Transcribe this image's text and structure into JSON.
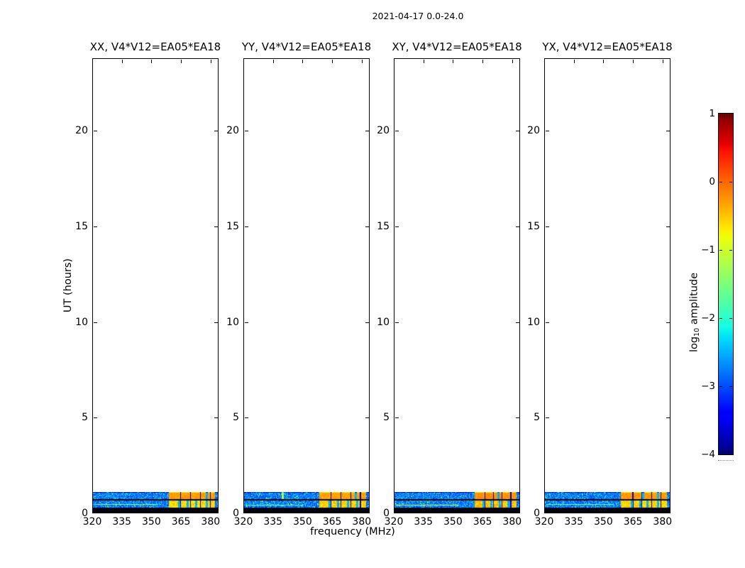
{
  "figure": {
    "title": "2021-04-17 0.0-24.0",
    "xlabel": "frequency (MHz)",
    "ylabel": "UT (hours)",
    "colorbar_label": {
      "pre": "log",
      "sub": "10",
      "post": " amplitude"
    },
    "background": "#ffffff",
    "axis_color": "#000000"
  },
  "chart_data": {
    "type": "heatmap",
    "title": "2021-04-17 0.0-24.0",
    "xlabel": "frequency (MHz)",
    "ylabel": "UT (hours)",
    "x_range_mhz": [
      320,
      384
    ],
    "x_ticks": [
      320,
      335,
      350,
      365,
      380
    ],
    "x_tick_labels": [
      "320",
      "335",
      "350",
      "365",
      "380"
    ],
    "y_range_hours": [
      0,
      23.8
    ],
    "y_ticks": [
      0,
      5,
      10,
      15,
      20
    ],
    "y_tick_labels": [
      "0",
      "5",
      "10",
      "15",
      "20"
    ],
    "grid": false,
    "legend": "none",
    "colorbar": {
      "label": "log10 amplitude",
      "min": -4,
      "max": 1,
      "ticks": [
        1,
        0,
        -1,
        -2,
        -3,
        -4
      ],
      "tick_labels": [
        "1",
        "0",
        "−1",
        "−2",
        "−3",
        "−4"
      ],
      "colormap": "jet",
      "position": "right"
    },
    "time_coverage": "Visibility data present only at UT 0 to ~1.1 hours; the remaining 0-24 h span of every panel is empty (white). A near-black band (log10 amp ~ -4) sits at UT 0-0.3 h.",
    "panels": [
      {
        "title": "XX, V4*V12=EA05*EA18",
        "polarization": "XX",
        "baseline": "V4*V12=EA05*EA18",
        "content": "Two noisy spectrum rows at UT 0.3-1.1 h: background log10 amplitude ~ -3.2 (blue) with cyan speckles for 320-358 MHz; strong RFI ~ -0.3 (orange/red blocks with dark 5 MHz separators) for 359-382 MHz; faint orange time-line in lower row at 320-353 MHz.",
        "render": {
          "seed": 11,
          "rfiStart": 358.6,
          "rfiA": -0.28,
          "rfiB": -0.62,
          "seps": [
            364.6,
            369.6,
            374.6,
            379.6
          ],
          "gapsA": [
            377.9
          ],
          "gapsB": [
            363.9,
            368.3,
            372.5,
            377.9
          ],
          "hasLine": true,
          "lineVal": -1.35,
          "lineEnd": 353,
          "lineRow": 17,
          "vline": null,
          "vlineVal": null
        }
      },
      {
        "title": "YY, V4*V12=EA05*EA18",
        "polarization": "YY",
        "baseline": "V4*V12=EA05*EA18",
        "content": "Same structure as XX; RFI block ~358-382 MHz, thin bright vertical line near 340 MHz, weak line in lower row.",
        "render": {
          "seed": 22,
          "rfiStart": 358.2,
          "rfiA": -0.3,
          "rfiB": -0.55,
          "seps": [
            364.2,
            369.2,
            374.2,
            379.2
          ],
          "gapsA": [
            376.8
          ],
          "gapsB": [
            363.5,
            368.0,
            372.8,
            377.5
          ],
          "hasLine": true,
          "lineVal": -1.6,
          "lineEnd": 350,
          "lineRow": 18,
          "vline": 339.8,
          "vlineVal": -1.2
        }
      },
      {
        "title": "XY, V4*V12=EA05*EA18",
        "polarization": "XY",
        "baseline": "V4*V12=EA05*EA18",
        "content": "RFI block starts slightly higher (~361 MHz); clear orange-red horizontal line across 321-352 MHz in the lower row.",
        "render": {
          "seed": 33,
          "rfiStart": 360.9,
          "rfiA": -0.22,
          "rfiB": -0.5,
          "seps": [
            366.0,
            370.3,
            374.8,
            379.2
          ],
          "gapsA": [
            372.9
          ],
          "gapsB": [
            365.2,
            369.3,
            373.6,
            378.1
          ],
          "hasLine": true,
          "lineVal": -0.95,
          "lineEnd": 352.5,
          "lineRow": 18,
          "vline": null,
          "vlineVal": null
        }
      },
      {
        "title": "YX, V4*V12=EA05*EA18",
        "polarization": "YX",
        "baseline": "V4*V12=EA05*EA18",
        "content": "Similar to XX: blue noise 320-358 MHz, orange/yellow RFI blocks 359-382 MHz with cyan gaps, faint line in lower row.",
        "render": {
          "seed": 44,
          "rfiStart": 358.8,
          "rfiA": -0.27,
          "rfiB": -0.6,
          "seps": [
            364.8,
            369.3,
            374.2,
            379.0
          ],
          "gapsA": [
            370.1,
            377.6
          ],
          "gapsB": [
            364.2,
            368.6,
            372.3,
            377.5
          ],
          "hasLine": true,
          "lineVal": -1.5,
          "lineEnd": 355,
          "lineRow": 17,
          "vline": null,
          "vlineVal": null
        }
      }
    ]
  }
}
